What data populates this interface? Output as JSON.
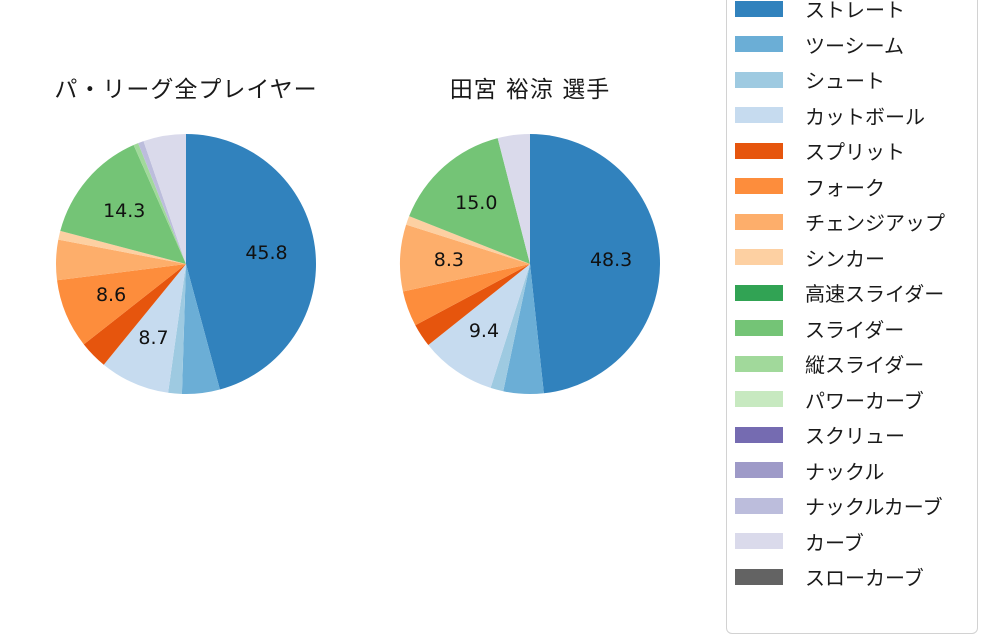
{
  "chart_data": [
    {
      "type": "pie",
      "title": "パ・リーグ全プレイヤー",
      "start_angle": "top",
      "direction": "clockwise",
      "value_label_min_pct": 8,
      "labels": [
        "ストレート",
        "ツーシーム",
        "シュート",
        "カットボール",
        "スプリット",
        "フォーク",
        "チェンジアップ",
        "シンカー",
        "スライダー",
        "縦スライダー",
        "ナックルカーブ",
        "カーブ"
      ],
      "values": [
        45.8,
        4.7,
        1.7,
        8.7,
        3.5,
        8.6,
        5.0,
        1.1,
        14.3,
        0.6,
        0.7,
        5.3
      ],
      "colors": [
        "#3182bd",
        "#6baed6",
        "#9ecae1",
        "#c6dbef",
        "#e6550d",
        "#fd8d3c",
        "#fdae6b",
        "#fdd0a2",
        "#74c476",
        "#a1d99b",
        "#bcbddc",
        "#dadaeb"
      ],
      "shown_value_labels": [
        "45.8",
        "8.7",
        "8.6",
        "14.3"
      ]
    },
    {
      "type": "pie",
      "title": "田宮 裕涼 選手",
      "start_angle": "top",
      "direction": "clockwise",
      "value_label_min_pct": 8,
      "labels": [
        "ストレート",
        "ツーシーム",
        "シュート",
        "カットボール",
        "スプリット",
        "フォーク",
        "チェンジアップ",
        "シンカー",
        "スライダー",
        "カーブ"
      ],
      "values": [
        48.3,
        5.0,
        1.6,
        9.4,
        2.9,
        4.4,
        8.3,
        1.1,
        15.0,
        4.0
      ],
      "colors": [
        "#3182bd",
        "#6baed6",
        "#9ecae1",
        "#c6dbef",
        "#e6550d",
        "#fd8d3c",
        "#fdae6b",
        "#fdd0a2",
        "#74c476",
        "#dadaeb"
      ],
      "shown_value_labels": [
        "48.3",
        "9.4",
        "8.3",
        "15.0"
      ]
    }
  ],
  "legend": {
    "position": "right",
    "items": [
      {
        "label": "ストレート",
        "color": "#3182bd"
      },
      {
        "label": "ツーシーム",
        "color": "#6baed6"
      },
      {
        "label": "シュート",
        "color": "#9ecae1"
      },
      {
        "label": "カットボール",
        "color": "#c6dbef"
      },
      {
        "label": "スプリット",
        "color": "#e6550d"
      },
      {
        "label": "フォーク",
        "color": "#fd8d3c"
      },
      {
        "label": "チェンジアップ",
        "color": "#fdae6b"
      },
      {
        "label": "シンカー",
        "color": "#fdd0a2"
      },
      {
        "label": "高速スライダー",
        "color": "#31a354"
      },
      {
        "label": "スライダー",
        "color": "#74c476"
      },
      {
        "label": "縦スライダー",
        "color": "#a1d99b"
      },
      {
        "label": "パワーカーブ",
        "color": "#c7e9c0"
      },
      {
        "label": "スクリュー",
        "color": "#756bb1"
      },
      {
        "label": "ナックル",
        "color": "#9e9ac8"
      },
      {
        "label": "ナックルカーブ",
        "color": "#bcbddc"
      },
      {
        "label": "カーブ",
        "color": "#dadaeb"
      },
      {
        "label": "スローカーブ",
        "color": "#636363"
      }
    ]
  }
}
